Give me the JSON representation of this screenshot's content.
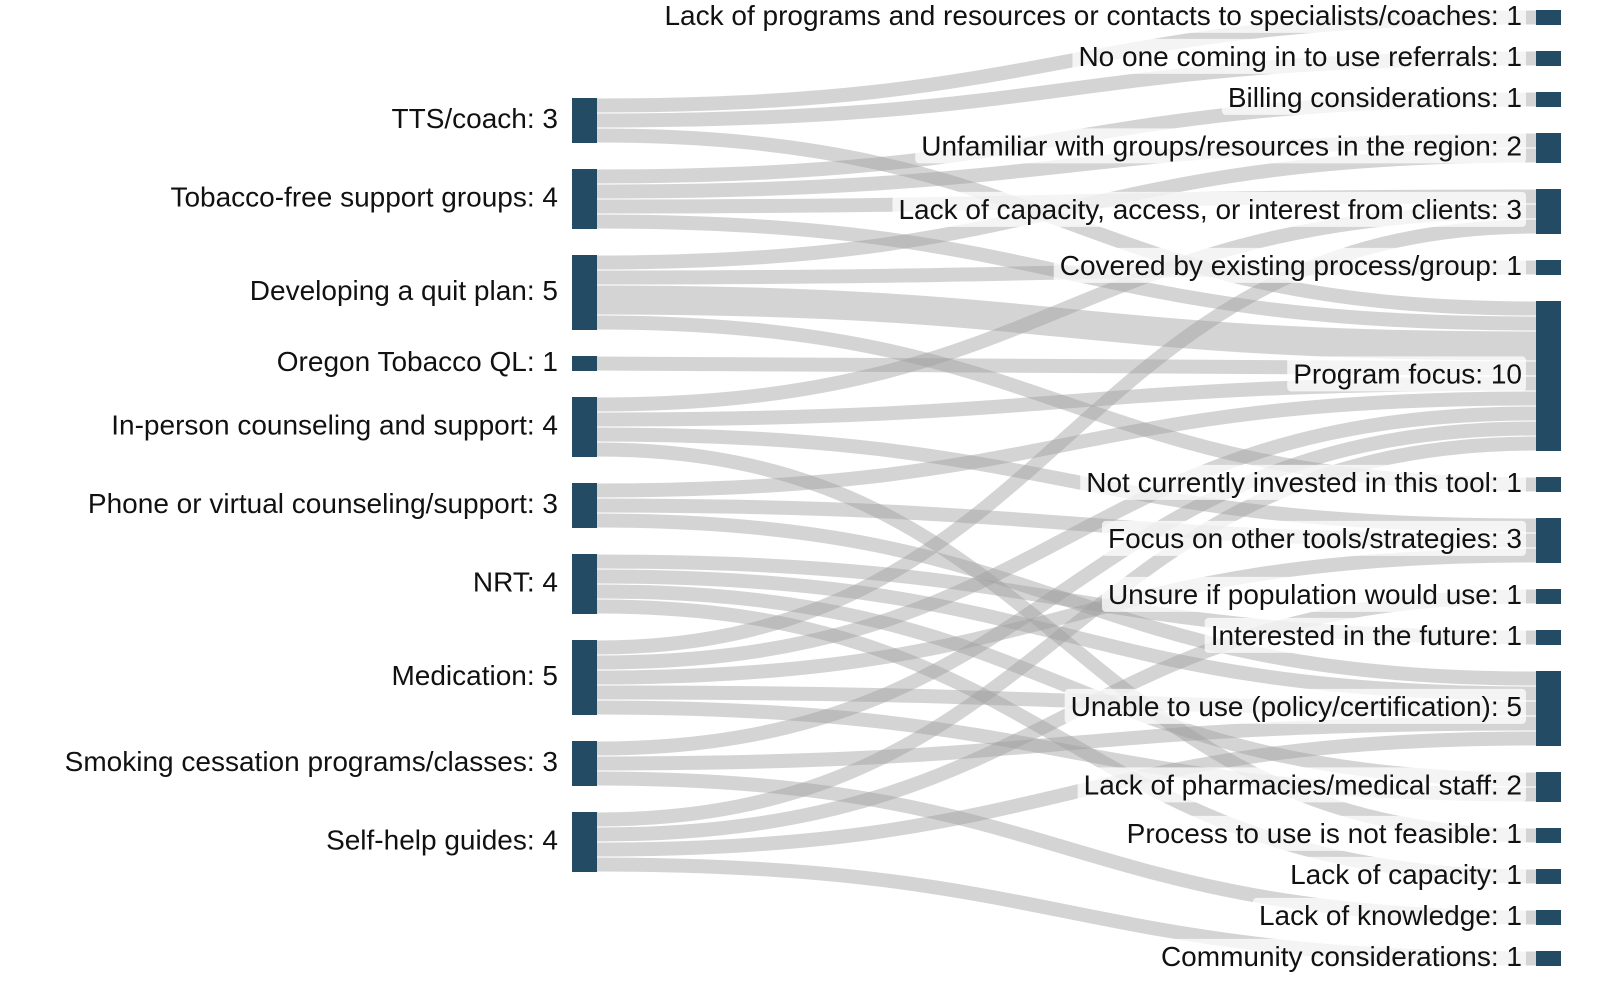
{
  "chart_data": {
    "type": "sankey",
    "node_color": "#234b63",
    "link_color": "rgba(160,160,160,0.45)",
    "nodes": [
      {
        "label": "TTS/coach: 3",
        "value": 3,
        "side": "left"
      },
      {
        "label": "Tobacco-free support groups: 4",
        "value": 4,
        "side": "left"
      },
      {
        "label": "Developing a quit plan: 5",
        "value": 5,
        "side": "left"
      },
      {
        "label": "Oregon Tobacco QL: 1",
        "value": 1,
        "side": "left"
      },
      {
        "label": "In-person counseling and support: 4",
        "value": 4,
        "side": "left"
      },
      {
        "label": "Phone or virtual counseling/support: 3",
        "value": 3,
        "side": "left"
      },
      {
        "label": "NRT: 4",
        "value": 4,
        "side": "left"
      },
      {
        "label": "Medication: 5",
        "value": 5,
        "side": "left"
      },
      {
        "label": "Smoking cessation programs/classes: 3",
        "value": 3,
        "side": "left"
      },
      {
        "label": "Self-help guides: 4",
        "value": 4,
        "side": "left"
      },
      {
        "label": "Lack of programs and resources or contacts to specialists/coaches: 1",
        "value": 1,
        "side": "right"
      },
      {
        "label": "No one coming in to use referrals: 1",
        "value": 1,
        "side": "right"
      },
      {
        "label": "Billing considerations: 1",
        "value": 1,
        "side": "right"
      },
      {
        "label": "Unfamiliar with groups/resources in the region: 2",
        "value": 2,
        "side": "right"
      },
      {
        "label": "Lack of capacity, access, or interest from clients: 3",
        "value": 3,
        "side": "right"
      },
      {
        "label": "Covered by existing process/group: 1",
        "value": 1,
        "side": "right"
      },
      {
        "label": "Program focus: 10",
        "value": 10,
        "side": "right"
      },
      {
        "label": "Not currently invested in this tool: 1",
        "value": 1,
        "side": "right"
      },
      {
        "label": "Focus on other tools/strategies: 3",
        "value": 3,
        "side": "right"
      },
      {
        "label": "Unsure if population would use: 1",
        "value": 1,
        "side": "right"
      },
      {
        "label": "Interested in the future: 1",
        "value": 1,
        "side": "right"
      },
      {
        "label": "Unable to use (policy/certification): 5",
        "value": 5,
        "side": "right"
      },
      {
        "label": "Lack of pharmacies/medical staff: 2",
        "value": 2,
        "side": "right"
      },
      {
        "label": "Process to use is not feasible: 1",
        "value": 1,
        "side": "right"
      },
      {
        "label": "Lack of capacity: 1",
        "value": 1,
        "side": "right"
      },
      {
        "label": "Lack of knowledge: 1",
        "value": 1,
        "side": "right"
      },
      {
        "label": "Community considerations: 1",
        "value": 1,
        "side": "right"
      }
    ],
    "links": [
      {
        "source": 0,
        "target": 10,
        "value": 1
      },
      {
        "source": 0,
        "target": 11,
        "value": 1
      },
      {
        "source": 0,
        "target": 16,
        "value": 1
      },
      {
        "source": 1,
        "target": 12,
        "value": 1
      },
      {
        "source": 1,
        "target": 13,
        "value": 1
      },
      {
        "source": 1,
        "target": 14,
        "value": 1
      },
      {
        "source": 1,
        "target": 16,
        "value": 1
      },
      {
        "source": 2,
        "target": 13,
        "value": 1
      },
      {
        "source": 2,
        "target": 15,
        "value": 1
      },
      {
        "source": 2,
        "target": 16,
        "value": 2
      },
      {
        "source": 2,
        "target": 17,
        "value": 1
      },
      {
        "source": 3,
        "target": 16,
        "value": 1
      },
      {
        "source": 4,
        "target": 14,
        "value": 1
      },
      {
        "source": 4,
        "target": 16,
        "value": 1
      },
      {
        "source": 4,
        "target": 18,
        "value": 1
      },
      {
        "source": 4,
        "target": 23,
        "value": 1
      },
      {
        "source": 5,
        "target": 16,
        "value": 1
      },
      {
        "source": 5,
        "target": 18,
        "value": 1
      },
      {
        "source": 5,
        "target": 21,
        "value": 1
      },
      {
        "source": 6,
        "target": 20,
        "value": 1
      },
      {
        "source": 6,
        "target": 21,
        "value": 1
      },
      {
        "source": 6,
        "target": 22,
        "value": 1
      },
      {
        "source": 6,
        "target": 24,
        "value": 1
      },
      {
        "source": 7,
        "target": 14,
        "value": 1
      },
      {
        "source": 7,
        "target": 16,
        "value": 1
      },
      {
        "source": 7,
        "target": 18,
        "value": 1
      },
      {
        "source": 7,
        "target": 21,
        "value": 1
      },
      {
        "source": 7,
        "target": 22,
        "value": 1
      },
      {
        "source": 8,
        "target": 16,
        "value": 1
      },
      {
        "source": 8,
        "target": 21,
        "value": 1
      },
      {
        "source": 8,
        "target": 25,
        "value": 1
      },
      {
        "source": 9,
        "target": 16,
        "value": 1
      },
      {
        "source": 9,
        "target": 19,
        "value": 1
      },
      {
        "source": 9,
        "target": 21,
        "value": 1
      },
      {
        "source": 9,
        "target": 26,
        "value": 1
      }
    ]
  }
}
